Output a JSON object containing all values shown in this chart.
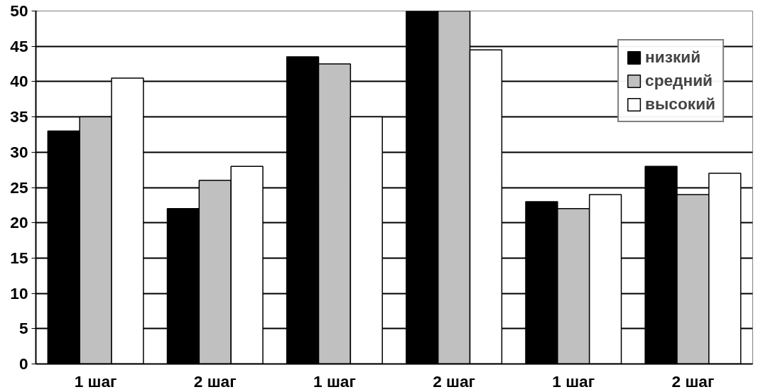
{
  "chart_data": {
    "type": "bar",
    "categories": [
      "1 шаг",
      "2 шаг",
      "1 шаг",
      "2 шаг",
      "1 шаг",
      "2 шаг"
    ],
    "series": [
      {
        "name": "низкий",
        "color": "#000000",
        "values": [
          33,
          22,
          43.5,
          50,
          23,
          28
        ]
      },
      {
        "name": "средний",
        "color": "#c0c0c0",
        "values": [
          35,
          26,
          42.5,
          50,
          22,
          24
        ]
      },
      {
        "name": "высокий",
        "color": "#ffffff",
        "values": [
          40.5,
          28,
          35,
          44.5,
          24,
          27
        ]
      }
    ],
    "ylim": [
      0,
      50
    ],
    "yticks": [
      0,
      5,
      10,
      15,
      20,
      25,
      30,
      35,
      40,
      45,
      50
    ],
    "grid": "y",
    "legend": "top right"
  }
}
